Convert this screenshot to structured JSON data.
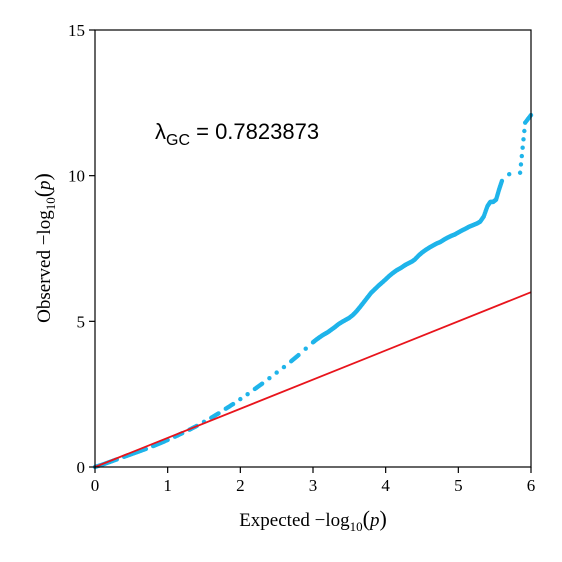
{
  "chart_data": {
    "type": "scatter",
    "title": "",
    "xlabel": {
      "prefix": "Expected",
      "minus": "−",
      "log": "log",
      "sub": "10",
      "lparen": "(",
      "var": "p",
      "rparen": ")"
    },
    "ylabel": {
      "prefix": "Observed",
      "minus": "−",
      "log": "log",
      "sub": "10",
      "lparen": "(",
      "var": "p",
      "rparen": ")"
    },
    "xlim": [
      0,
      6
    ],
    "ylim": [
      0,
      15
    ],
    "xticks": [
      "0",
      "1",
      "2",
      "3",
      "4",
      "5",
      "6"
    ],
    "yticks": [
      "0",
      "5",
      "10",
      "15"
    ],
    "grid": false,
    "annotation": {
      "symbol": "λ",
      "subscript": "GC",
      "text": " = 0.7823873"
    },
    "colors": {
      "points": "#1fb4ea",
      "reference_line": "#e8141c",
      "axis": "#000000"
    },
    "reference_line": {
      "label": "",
      "points": [
        [
          0,
          0
        ],
        [
          6,
          6
        ]
      ]
    },
    "series": [
      {
        "name": "",
        "points": [
          [
            0.0,
            0.0
          ],
          [
            0.1,
            0.08
          ],
          [
            0.2,
            0.17
          ],
          [
            0.3,
            0.26
          ],
          [
            0.4,
            0.35
          ],
          [
            0.5,
            0.44
          ],
          [
            0.6,
            0.53
          ],
          [
            0.7,
            0.62
          ],
          [
            0.8,
            0.72
          ],
          [
            0.9,
            0.82
          ],
          [
            1.0,
            0.93
          ],
          [
            1.1,
            1.04
          ],
          [
            1.2,
            1.16
          ],
          [
            1.3,
            1.28
          ],
          [
            1.4,
            1.41
          ],
          [
            1.5,
            1.55
          ],
          [
            1.6,
            1.69
          ],
          [
            1.7,
            1.84
          ],
          [
            1.8,
            2.0
          ],
          [
            1.9,
            2.16
          ],
          [
            2.0,
            2.33
          ],
          [
            2.1,
            2.5
          ],
          [
            2.2,
            2.68
          ],
          [
            2.3,
            2.86
          ],
          [
            2.4,
            3.05
          ],
          [
            2.5,
            3.24
          ],
          [
            2.6,
            3.43
          ],
          [
            2.7,
            3.63
          ],
          [
            2.8,
            3.84
          ],
          [
            2.9,
            4.06
          ],
          [
            3.0,
            4.28
          ],
          [
            3.05,
            4.38
          ],
          [
            3.1,
            4.47
          ],
          [
            3.15,
            4.55
          ],
          [
            3.2,
            4.62
          ],
          [
            3.25,
            4.71
          ],
          [
            3.3,
            4.8
          ],
          [
            3.35,
            4.9
          ],
          [
            3.4,
            4.98
          ],
          [
            3.45,
            5.05
          ],
          [
            3.5,
            5.12
          ],
          [
            3.55,
            5.22
          ],
          [
            3.6,
            5.35
          ],
          [
            3.65,
            5.5
          ],
          [
            3.7,
            5.66
          ],
          [
            3.75,
            5.82
          ],
          [
            3.8,
            5.98
          ],
          [
            3.85,
            6.1
          ],
          [
            3.9,
            6.22
          ],
          [
            3.95,
            6.33
          ],
          [
            4.0,
            6.44
          ],
          [
            4.05,
            6.56
          ],
          [
            4.1,
            6.66
          ],
          [
            4.15,
            6.75
          ],
          [
            4.2,
            6.82
          ],
          [
            4.25,
            6.9
          ],
          [
            4.28,
            6.95
          ],
          [
            4.32,
            7.0
          ],
          [
            4.36,
            7.05
          ],
          [
            4.4,
            7.12
          ],
          [
            4.45,
            7.25
          ],
          [
            4.5,
            7.36
          ],
          [
            4.55,
            7.45
          ],
          [
            4.6,
            7.53
          ],
          [
            4.65,
            7.6
          ],
          [
            4.7,
            7.67
          ],
          [
            4.75,
            7.72
          ],
          [
            4.8,
            7.8
          ],
          [
            4.85,
            7.87
          ],
          [
            4.9,
            7.93
          ],
          [
            4.95,
            7.98
          ],
          [
            5.0,
            8.05
          ],
          [
            5.05,
            8.12
          ],
          [
            5.1,
            8.18
          ],
          [
            5.15,
            8.25
          ],
          [
            5.2,
            8.3
          ],
          [
            5.25,
            8.35
          ],
          [
            5.3,
            8.42
          ],
          [
            5.35,
            8.6
          ],
          [
            5.4,
            8.95
          ],
          [
            5.44,
            9.1
          ],
          [
            5.48,
            9.1
          ],
          [
            5.52,
            9.18
          ],
          [
            5.56,
            9.52
          ],
          [
            5.6,
            9.82
          ],
          [
            5.7,
            10.05
          ],
          [
            5.85,
            10.1
          ],
          [
            5.92,
            11.82
          ],
          [
            6.0,
            12.08
          ]
        ]
      }
    ]
  }
}
